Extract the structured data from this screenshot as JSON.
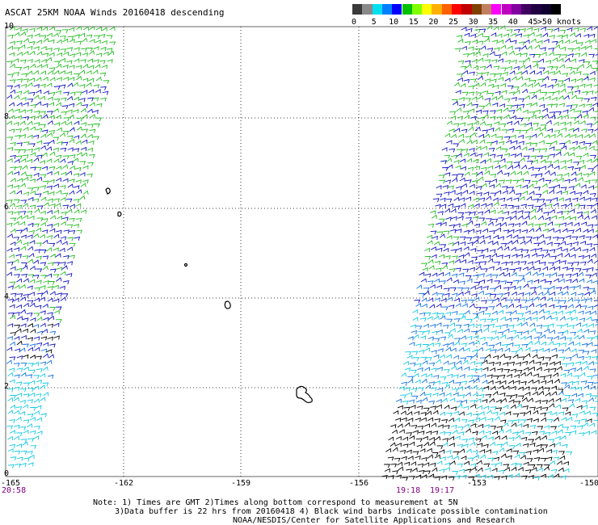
{
  "title": "ASCAT 25KM NOAA Winds 20160418 descending",
  "legend": {
    "colors": [
      "#3a3a3a",
      "#8a8a8a",
      "#00e0f0",
      "#0080ff",
      "#0000ff",
      "#00c000",
      "#80ff00",
      "#ffff00",
      "#ffb000",
      "#ff6000",
      "#ff0000",
      "#c00000",
      "#804000",
      "#c08060",
      "#ff00ff",
      "#c000c0",
      "#8000a0",
      "#400060",
      "#200040",
      "#100030",
      "#000000"
    ],
    "labels": [
      "0",
      "5",
      "10",
      "15",
      "20",
      "25",
      "30",
      "35",
      "40",
      "45",
      ">50 knots"
    ]
  },
  "axes": {
    "lat_labels": [
      "10",
      "8",
      "6",
      "4",
      "2",
      "0"
    ],
    "lon_labels": [
      "-165",
      "-162",
      "-159",
      "-156",
      "-153",
      "-150"
    ]
  },
  "times": {
    "left": "20:58",
    "right_a": "19:18",
    "right_b": "19:17"
  },
  "notes": {
    "line1": "Note: 1) Times are GMT 2)Times along bottom correspond to measurement at 5N",
    "line2": "3)Data buffer is 22 hrs from 20160418 4) Black wind barbs indicate possible contamination",
    "line3": "NOAA/NESDIS/Center for Satellite Applications and Research"
  },
  "wind_colors": {
    "green": "#22bb22",
    "blue": "#1010c0",
    "mid_blue": "#1070e0",
    "cyan": "#10c8e0",
    "contaminated": "#000000"
  }
}
